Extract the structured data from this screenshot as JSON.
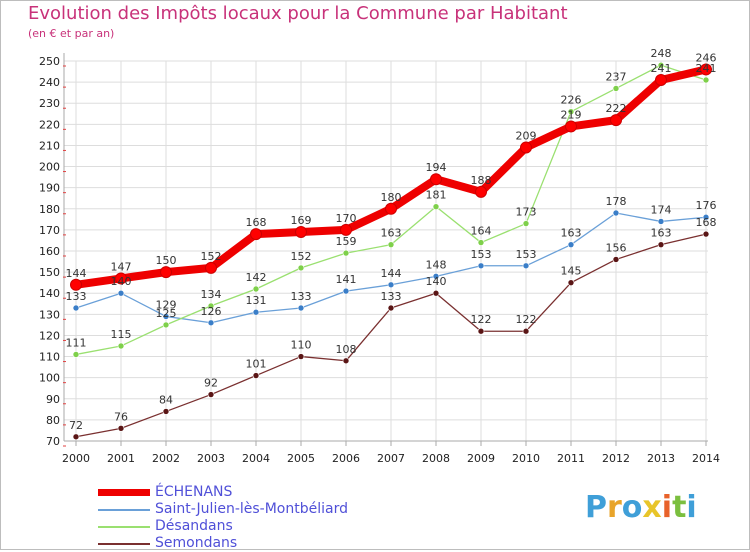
{
  "colors": {
    "title": "#c8327a",
    "grid": "#dddddd",
    "axis": "#aaaaaa",
    "legend_text": "#5050d8"
  },
  "logo": {
    "letters": [
      "P",
      "r",
      "o",
      "x",
      "i",
      "t",
      "i"
    ],
    "colors": [
      "#3f9fd8",
      "#e8a42a",
      "#3f9fd8",
      "#e8c52a",
      "#e8622a",
      "#7bbf3f",
      "#3f9fd8"
    ]
  },
  "chart_data": {
    "type": "line",
    "title": "Evolution des Impôts locaux pour la Commune par Habitant",
    "subtitle": "(en € et par an)",
    "xlabel": "",
    "ylabel": "",
    "ylim": [
      70,
      250
    ],
    "yticks": [
      70,
      80,
      90,
      100,
      110,
      120,
      130,
      140,
      150,
      160,
      170,
      180,
      190,
      200,
      210,
      220,
      230,
      240,
      250
    ],
    "x": [
      "2000",
      "2001",
      "2002",
      "2003",
      "2004",
      "2005",
      "2006",
      "2007",
      "2008",
      "2009",
      "2010",
      "2011",
      "2012",
      "2013",
      "2014"
    ],
    "legend_position": "bottom-left",
    "series": [
      {
        "name": "ÉCHENANS",
        "color": "#ff0000",
        "line_color": "#ee0000",
        "thick": true,
        "values": [
          144,
          147,
          150,
          152,
          168,
          169,
          170,
          180,
          194,
          188,
          209,
          219,
          222,
          241,
          246
        ],
        "labels": [
          "144",
          "147",
          "150",
          "152",
          "168",
          "169",
          "170",
          "180",
          "194",
          "188",
          "209",
          "219",
          "222",
          "241",
          "246"
        ]
      },
      {
        "name": "Saint-Julien-lès-Montbéliard",
        "color": "#3a7ec8",
        "line_color": "#6aa0d8",
        "thick": false,
        "values": [
          133,
          140,
          129,
          126,
          131,
          133,
          141,
          144,
          148,
          153,
          153,
          163,
          178,
          174,
          176
        ],
        "labels": [
          "133",
          "140",
          "129",
          "126",
          "131",
          "133",
          "141",
          "144",
          "148",
          "153",
          "153",
          "163",
          "178",
          "174",
          "176"
        ]
      },
      {
        "name": "Désandans",
        "color": "#7ed04a",
        "line_color": "#9ae070",
        "thick": false,
        "values": [
          111,
          115,
          125,
          134,
          142,
          152,
          159,
          163,
          181,
          164,
          173,
          226,
          237,
          248,
          241
        ],
        "labels": [
          "111",
          "115",
          "125",
          "134",
          "142",
          "152",
          "159",
          "163",
          "181",
          "164",
          "173",
          "226",
          "237",
          "248",
          "241"
        ]
      },
      {
        "name": "Semondans",
        "color": "#5a1515",
        "line_color": "#7a3030",
        "thick": false,
        "values": [
          72,
          76,
          84,
          92,
          101,
          110,
          108,
          133,
          140,
          122,
          122,
          145,
          156,
          163,
          168
        ],
        "labels": [
          "72",
          "76",
          "84",
          "92",
          "101",
          "110",
          "108",
          "133",
          "140",
          "122",
          "122",
          "145",
          "156",
          "163",
          "168"
        ]
      }
    ]
  }
}
